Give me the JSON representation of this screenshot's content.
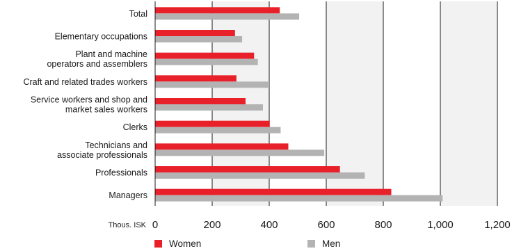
{
  "chart_data": {
    "type": "bar",
    "orientation": "horizontal",
    "categories": [
      [
        "Total"
      ],
      [
        "Elementary occupations"
      ],
      [
        "Plant and machine",
        "operators and assemblers"
      ],
      [
        "Craft and related trades workers"
      ],
      [
        "Service workers and shop and",
        "market sales workers"
      ],
      [
        "Clerks"
      ],
      [
        "Technicians and",
        "associate professionals"
      ],
      [
        "Professionals"
      ],
      [
        "Managers"
      ]
    ],
    "series": [
      {
        "name": "Women",
        "color": "#e8202a",
        "values": [
          437,
          280,
          347,
          285,
          317,
          402,
          467,
          648,
          828
        ]
      },
      {
        "name": "Men",
        "color": "#b3b3b3",
        "values": [
          505,
          305,
          360,
          400,
          378,
          440,
          593,
          735,
          1008
        ]
      }
    ],
    "xlabel": "Thous. ISK",
    "xlim": [
      0,
      1200
    ],
    "xticks": [
      0,
      200,
      400,
      600,
      800,
      1000,
      1200
    ],
    "xtick_labels": [
      "0",
      "200",
      "400",
      "600",
      "800",
      "1,000",
      "1,200"
    ],
    "grid": "vertical",
    "band_color": "#f2f2f2",
    "legend_position": "bottom"
  }
}
